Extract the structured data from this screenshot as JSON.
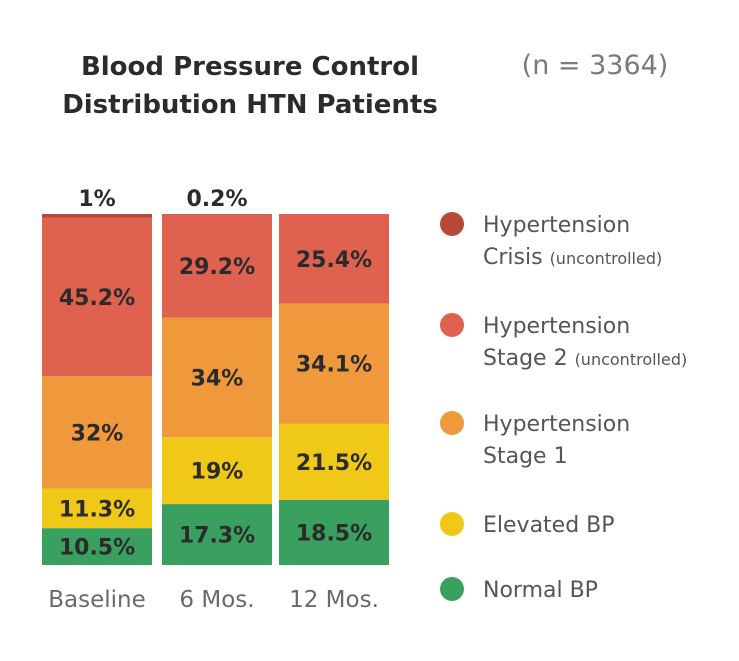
{
  "chart_data": {
    "type": "bar",
    "stacked": true,
    "normalized": true,
    "title_lines": [
      "Blood Pressure Control",
      "Distribution HTN Patients"
    ],
    "sample_size": "(n = 3364)",
    "categories": [
      "Baseline",
      "6 Mos.",
      "12 Mos."
    ],
    "series": [
      {
        "name": "Normal BP",
        "color": "#3aa060",
        "values": [
          10.5,
          17.3,
          18.5
        ],
        "labels": [
          "10.5%",
          "17.3%",
          "18.5%"
        ]
      },
      {
        "name": "Elevated BP",
        "color": "#f0c918",
        "values": [
          11.3,
          19,
          21.5
        ],
        "labels": [
          "11.3%",
          "19%",
          "21.5%"
        ]
      },
      {
        "name": "Hypertension Stage 1",
        "color": "#f0983c",
        "values": [
          32,
          34,
          34.1
        ],
        "labels": [
          "32%",
          "34%",
          "34.1%"
        ]
      },
      {
        "name": "Hypertension Stage 2 (uncontrolled)",
        "color": "#df6150",
        "values": [
          45.2,
          29.2,
          25.4
        ],
        "labels": [
          "45.2%",
          "29.2%",
          "25.4%"
        ]
      },
      {
        "name": "Hypertension Crisis (uncontrolled)",
        "color": "#b84838",
        "values": [
          1,
          0.2,
          0
        ],
        "labels": [
          "1%",
          "0.2%",
          ""
        ]
      }
    ],
    "legend": [
      {
        "line1": "Hypertension",
        "line2": "Crisis",
        "sub": "(uncontrolled)",
        "color": "#b84838"
      },
      {
        "line1": "Hypertension",
        "line2": "Stage 2",
        "sub": "(uncontrolled)",
        "color": "#df6150"
      },
      {
        "line1": "Hypertension",
        "line2": "Stage 1",
        "sub": "",
        "color": "#f0983c"
      },
      {
        "line1": "Elevated BP",
        "line2": "",
        "sub": "",
        "color": "#f0c918"
      },
      {
        "line1": "Normal BP",
        "line2": "",
        "sub": "",
        "color": "#3aa060"
      }
    ]
  }
}
